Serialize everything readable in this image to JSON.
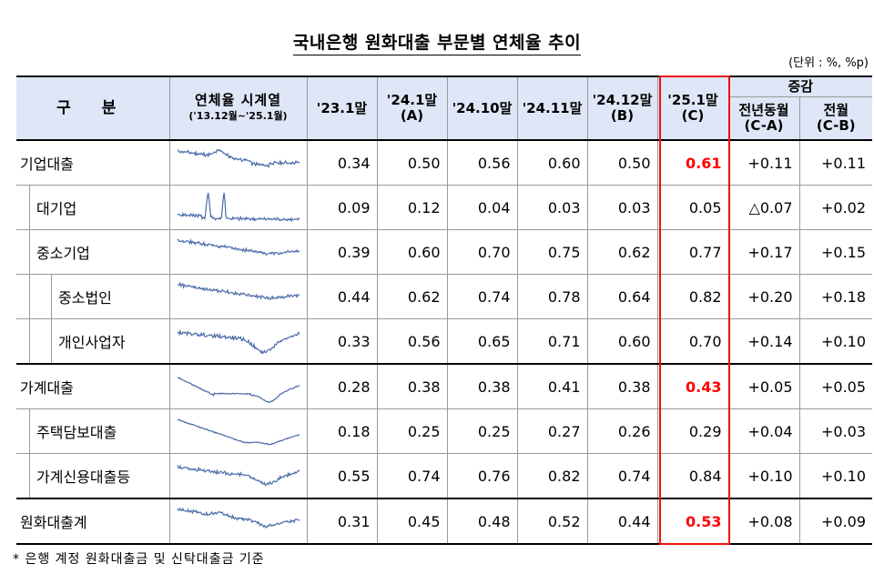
{
  "title": "국내은행 원화대출 부문별 연체율 추이",
  "unit": "(단위 : %, %p)",
  "header": {
    "category": "구 분",
    "trend_line1": "연체율 시계열",
    "trend_line2": "('13.12월~'25.1월)",
    "cols": [
      {
        "l1": "'23.1말",
        "l2": ""
      },
      {
        "l1": "'24.1말",
        "l2": "(A)"
      },
      {
        "l1": "'24.10말",
        "l2": ""
      },
      {
        "l1": "'24.11말",
        "l2": ""
      },
      {
        "l1": "'24.12말",
        "l2": "(B)"
      },
      {
        "l1": "'25.1말",
        "l2": "(C)"
      }
    ],
    "change": "증감",
    "yoy_l1": "전년동월",
    "yoy_l2": "(C-A)",
    "mom_l1": "전월",
    "mom_l2": "(C-B)"
  },
  "rows": [
    {
      "label": "기업대출",
      "level": 0,
      "values": [
        "0.34",
        "0.50",
        "0.56",
        "0.60",
        "0.50",
        "0.61"
      ],
      "yoy": "+0.11",
      "mom": "+0.11",
      "highlight": true,
      "spark": "corp"
    },
    {
      "label": "대기업",
      "level": 1,
      "values": [
        "0.09",
        "0.12",
        "0.04",
        "0.03",
        "0.03",
        "0.05"
      ],
      "yoy": "△0.07",
      "mom": "+0.02",
      "highlight": false,
      "spark": "large"
    },
    {
      "label": "중소기업",
      "level": 1,
      "values": [
        "0.39",
        "0.60",
        "0.70",
        "0.75",
        "0.62",
        "0.77"
      ],
      "yoy": "+0.17",
      "mom": "+0.15",
      "highlight": false,
      "spark": "sme"
    },
    {
      "label": "중소법인",
      "level": 2,
      "values": [
        "0.44",
        "0.62",
        "0.74",
        "0.78",
        "0.64",
        "0.82"
      ],
      "yoy": "+0.20",
      "mom": "+0.18",
      "highlight": false,
      "spark": "smecorp"
    },
    {
      "label": "개인사업자",
      "level": 2,
      "values": [
        "0.33",
        "0.56",
        "0.65",
        "0.71",
        "0.60",
        "0.70"
      ],
      "yoy": "+0.14",
      "mom": "+0.10",
      "highlight": false,
      "spark": "selfemp"
    },
    {
      "label": "가계대출",
      "level": 0,
      "values": [
        "0.28",
        "0.38",
        "0.38",
        "0.41",
        "0.38",
        "0.43"
      ],
      "yoy": "+0.05",
      "mom": "+0.05",
      "highlight": true,
      "spark": "hh"
    },
    {
      "label": "주택담보대출",
      "level": 1,
      "values": [
        "0.18",
        "0.25",
        "0.25",
        "0.27",
        "0.26",
        "0.29"
      ],
      "yoy": "+0.04",
      "mom": "+0.03",
      "highlight": false,
      "spark": "mortgage"
    },
    {
      "label": "가계신용대출등",
      "level": 1,
      "values": [
        "0.55",
        "0.74",
        "0.76",
        "0.82",
        "0.74",
        "0.84"
      ],
      "yoy": "+0.10",
      "mom": "+0.10",
      "highlight": false,
      "spark": "credit"
    },
    {
      "label": "원화대출계",
      "level": 0,
      "values": [
        "0.31",
        "0.45",
        "0.48",
        "0.52",
        "0.44",
        "0.53"
      ],
      "yoy": "+0.08",
      "mom": "+0.09",
      "highlight": true,
      "spark": "total"
    }
  ],
  "note": "* 은행 계정 원화대출금 및 신탁대출금 기준",
  "colors": {
    "header_bg": "#dfe6f7",
    "highlight": "#ff0000",
    "spark": "#4a6aa8"
  }
}
